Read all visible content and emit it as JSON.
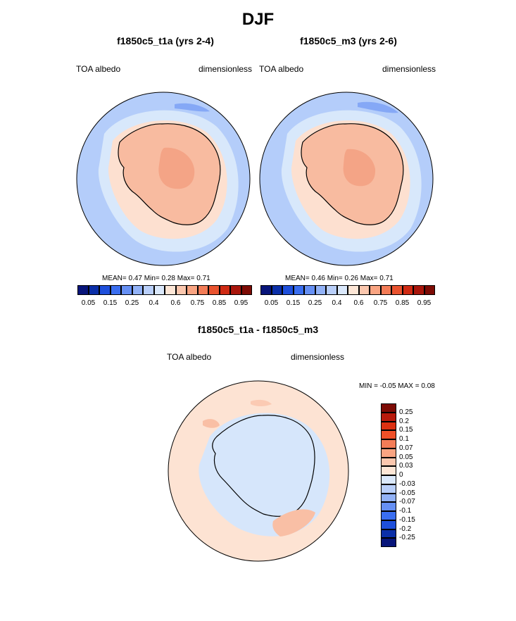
{
  "page_title": "DJF",
  "colors": {
    "ocean": "#b4cdfa",
    "sea_ice_edge": "#d8e8fb",
    "sea_ice_mid": "#fde0d0",
    "antarctica": "#f8bba0",
    "antarctica_high": "#f4a486",
    "diff_pos": "#fde3d3",
    "diff_neg": "#d6e6fb",
    "diff_strong_pos": "#f9bfa5"
  },
  "panels": [
    {
      "title": "f1850c5_t1a (yrs 2-4)",
      "left_label": "TOA albedo",
      "right_label": "dimensionless",
      "stats": {
        "mean_label": "MEAN=",
        "mean": "0.47",
        "min_label": "Min=",
        "min": "0.28",
        "max_label": "Max=",
        "max": "0.71"
      }
    },
    {
      "title": "f1850c5_m3 (yrs 2-6)",
      "left_label": "TOA albedo",
      "right_label": "dimensionless",
      "stats": {
        "mean_label": "MEAN=",
        "mean": "0.46",
        "min_label": "Min=",
        "min": "0.26",
        "max_label": "Max=",
        "max": "0.71"
      }
    }
  ],
  "colorbar": {
    "colors": [
      "#08157a",
      "#0b2fa8",
      "#1e4fdb",
      "#3a6ef0",
      "#6690f4",
      "#92b2f7",
      "#b9cffa",
      "#dae8fb",
      "#fde6d6",
      "#fbc7ae",
      "#f9a482",
      "#f37c57",
      "#e9532f",
      "#cf2a13",
      "#a9160c",
      "#7d0b05"
    ],
    "labels": [
      "0.05",
      "0.15",
      "0.25",
      "0.4",
      "0.6",
      "0.75",
      "0.85",
      "0.95"
    ]
  },
  "diff": {
    "title": "f1850c5_t1a - f1850c5_m3",
    "left_label": "TOA albedo",
    "right_label": "dimensionless",
    "minmax_label": "MIN =  -0.05 MAX =   0.08",
    "colorbar": {
      "colors": [
        "#7d0b05",
        "#b81a0c",
        "#dc3112",
        "#f05028",
        "#f37c57",
        "#f9a482",
        "#fbc7ae",
        "#fde6d6",
        "#dae8fb",
        "#b9cffa",
        "#92b2f7",
        "#6690f4",
        "#3a6ef0",
        "#1e4fdb",
        "#0b2fa8",
        "#08157a"
      ],
      "labels": [
        "0.25",
        "0.2",
        "0.15",
        "0.1",
        "0.07",
        "0.05",
        "0.03",
        "0",
        "-0.03",
        "-0.05",
        "-0.07",
        "-0.1",
        "-0.15",
        "-0.2",
        "-0.25"
      ]
    }
  }
}
